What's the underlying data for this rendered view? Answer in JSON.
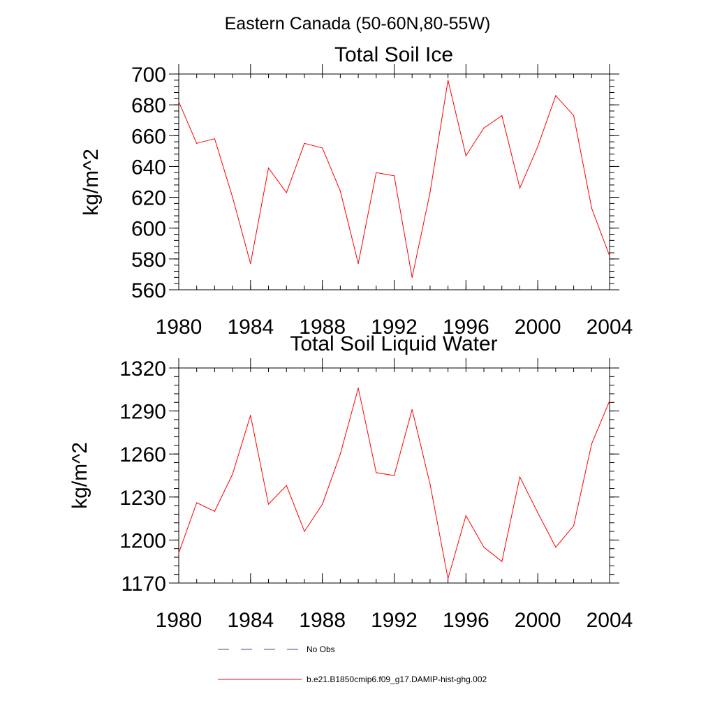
{
  "suptitle": "Eastern Canada (50-60N,80-55W)",
  "chart_data": [
    {
      "type": "line",
      "title": "Total Soil Ice",
      "xlabel": "",
      "ylabel": "kg/m^2",
      "xlim": [
        1980,
        2004
      ],
      "ylim": [
        560,
        700
      ],
      "xticks": [
        "1980",
        "1984",
        "1988",
        "1992",
        "1996",
        "2000",
        "2004"
      ],
      "yticks": [
        "560",
        "580",
        "600",
        "620",
        "640",
        "660",
        "680",
        "700"
      ],
      "x": [
        1980,
        1981,
        1982,
        1983,
        1984,
        1985,
        1986,
        1987,
        1988,
        1989,
        1990,
        1991,
        1992,
        1993,
        1994,
        1995,
        1996,
        1997,
        1998,
        1999,
        2000,
        2001,
        2002,
        2003,
        2004
      ],
      "series": [
        {
          "name": "b.e21.B1850cmip6.f09_g17.DAMIP-hist-ghg.002",
          "color": "#ff0000",
          "values": [
            682,
            655,
            658,
            620,
            577,
            639,
            623,
            655,
            652,
            624,
            577,
            636,
            634,
            568,
            623,
            696,
            647,
            665,
            673,
            626,
            653,
            686,
            673,
            613,
            582
          ]
        }
      ],
      "grid": false
    },
    {
      "type": "line",
      "title": "Total Soil Liquid Water",
      "xlabel": "",
      "ylabel": "kg/m^2",
      "xlim": [
        1980,
        2004
      ],
      "ylim": [
        1170,
        1320
      ],
      "xticks": [
        "1980",
        "1984",
        "1988",
        "1992",
        "1996",
        "2000",
        "2004"
      ],
      "yticks": [
        "1170",
        "1200",
        "1230",
        "1260",
        "1290",
        "1320"
      ],
      "x": [
        1980,
        1981,
        1982,
        1983,
        1984,
        1985,
        1986,
        1987,
        1988,
        1989,
        1990,
        1991,
        1992,
        1993,
        1994,
        1995,
        1996,
        1997,
        1998,
        1999,
        2000,
        2001,
        2002,
        2003,
        2004
      ],
      "series": [
        {
          "name": "b.e21.B1850cmip6.f09_g17.DAMIP-hist-ghg.002",
          "color": "#ff0000",
          "values": [
            1191,
            1226,
            1220,
            1246,
            1287,
            1225,
            1238,
            1206,
            1225,
            1260,
            1306,
            1247,
            1245,
            1291,
            1239,
            1173,
            1217,
            1195,
            1185,
            1244,
            1219,
            1195,
            1210,
            1267,
            1297
          ]
        }
      ],
      "grid": false
    }
  ],
  "legend": [
    {
      "label": "No Obs",
      "color": "#4a4a8a",
      "style": "dashed"
    },
    {
      "label": "b.e21.B1850cmip6.f09_g17.DAMIP-hist-ghg.002",
      "color": "#ff0000",
      "style": "solid"
    }
  ],
  "legend_placement": "bottom"
}
